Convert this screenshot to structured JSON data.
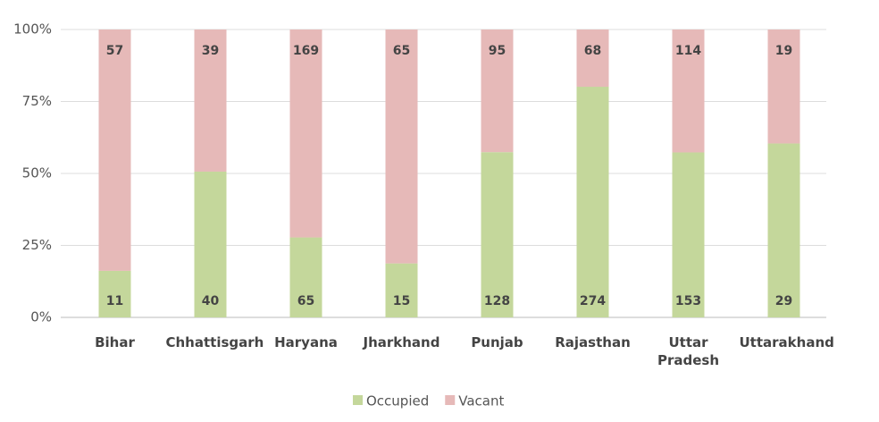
{
  "chart_data": {
    "type": "stacked_percent_bar",
    "categories": [
      "Bihar",
      "Chhattisgarh",
      "Haryana",
      "Jharkhand",
      "Punjab",
      "Rajasthan",
      "Uttar Pradesh",
      "Uttarakhand"
    ],
    "series": [
      {
        "name": "Occupied",
        "color": "#c4d79b",
        "values": [
          11,
          40,
          65,
          15,
          128,
          274,
          153,
          29
        ]
      },
      {
        "name": "Vacant",
        "color": "#e6b9b8",
        "values": [
          57,
          39,
          169,
          65,
          95,
          68,
          114,
          19
        ]
      }
    ],
    "ylim": [
      0,
      100
    ],
    "yticks": [
      {
        "value": 0,
        "label": "0%"
      },
      {
        "value": 25,
        "label": "25%"
      },
      {
        "value": 50,
        "label": "50%"
      },
      {
        "value": 75,
        "label": "75%"
      },
      {
        "value": 100,
        "label": "100%"
      }
    ],
    "grid": true,
    "legend": "bottom"
  }
}
